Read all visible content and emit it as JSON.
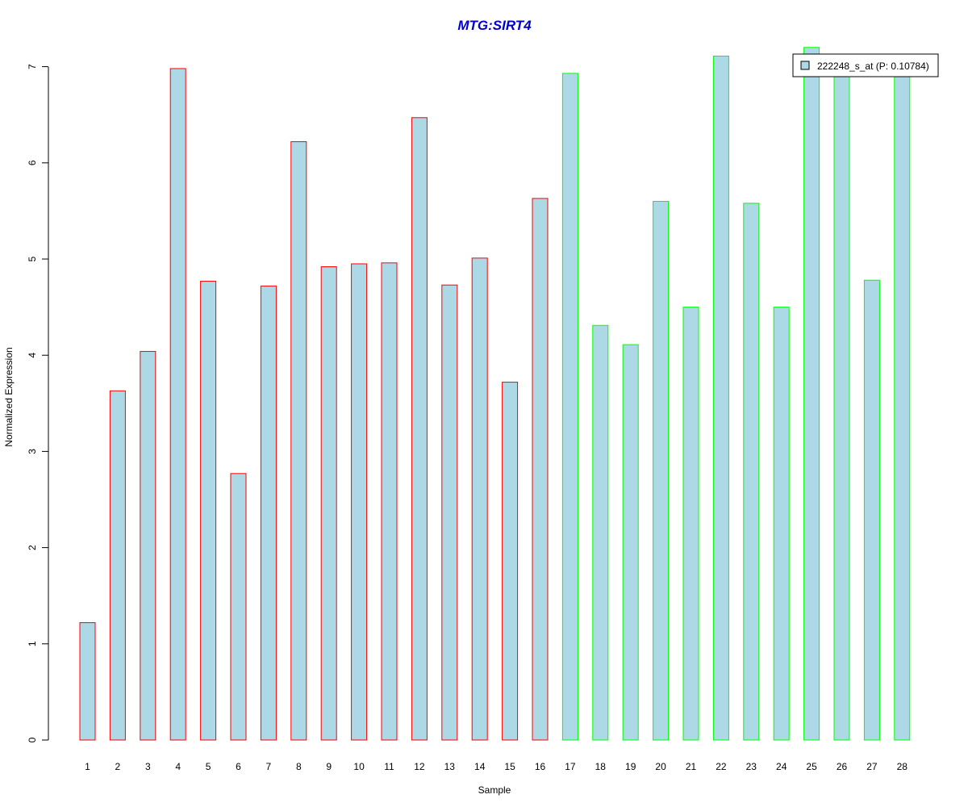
{
  "colors": {
    "title": "#0000cc",
    "bar_fill": "#add8e6",
    "group1_border": "#ff0000",
    "group2_border": "#00ff00",
    "axis": "#000000"
  },
  "chart_data": {
    "type": "bar",
    "title": "MTG:SIRT4",
    "xlabel": "Sample",
    "ylabel": "Normalized Expression",
    "ylim": [
      0,
      7.2
    ],
    "yticks": [
      0,
      1,
      2,
      3,
      4,
      5,
      6,
      7
    ],
    "grid": false,
    "legend": {
      "position": "top-right",
      "label": "222248_s_at (P: 0.10784)"
    },
    "categories": [
      "1",
      "2",
      "3",
      "4",
      "5",
      "6",
      "7",
      "8",
      "9",
      "10",
      "11",
      "12",
      "13",
      "14",
      "15",
      "16",
      "17",
      "18",
      "19",
      "20",
      "21",
      "22",
      "23",
      "24",
      "25",
      "26",
      "27",
      "28"
    ],
    "series": [
      {
        "name": "222248_s_at (P: 0.10784)",
        "values": [
          1.22,
          3.63,
          4.04,
          6.98,
          4.77,
          2.77,
          4.72,
          6.22,
          4.92,
          4.95,
          4.96,
          6.47,
          4.73,
          5.01,
          3.72,
          5.63,
          6.93,
          4.31,
          4.11,
          5.6,
          4.5,
          7.11,
          5.58,
          4.5,
          7.2,
          6.95,
          4.78,
          6.95
        ],
        "groups": [
          1,
          1,
          1,
          1,
          1,
          1,
          1,
          1,
          1,
          1,
          1,
          1,
          1,
          1,
          1,
          1,
          2,
          2,
          2,
          2,
          2,
          2,
          2,
          2,
          2,
          2,
          2,
          2
        ]
      }
    ]
  }
}
